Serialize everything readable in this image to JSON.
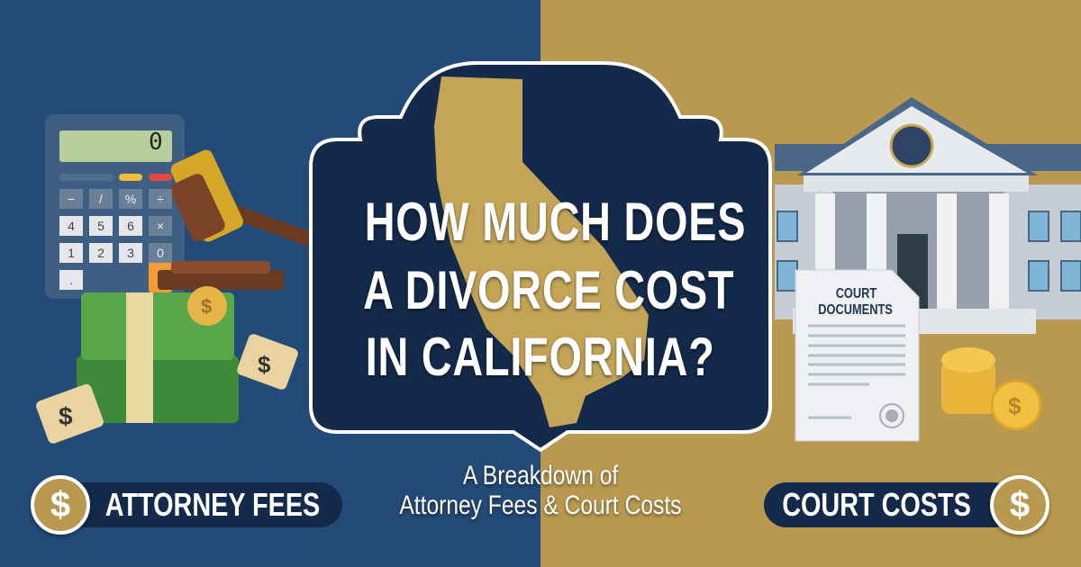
{
  "headline": {
    "line1": "HOW MUCH DOES",
    "line2": "A DIVORCE COST",
    "line3": "IN CALIFORNIA?"
  },
  "subtitle": {
    "line1": "A Breakdown of",
    "line2": "Attorney Fees & Court Costs"
  },
  "left_badge": {
    "label": "ATTORNEY FEES",
    "icon": "dollar-icon",
    "symbol": "$"
  },
  "right_badge": {
    "label": "COURT COSTS",
    "icon": "dollar-icon",
    "symbol": "$"
  },
  "calculator": {
    "display": "0",
    "keys": [
      "−",
      "/",
      "%",
      "÷",
      "4",
      "5",
      "6",
      "×",
      "1",
      "2",
      "3",
      "=",
      "0",
      "."
    ]
  },
  "document": {
    "line1": "COURT",
    "line2": "DOCUMENTS"
  },
  "price_tag_symbol": "$",
  "colors": {
    "left_bg": "#244a77",
    "right_bg": "#b8994f",
    "bubble": "#142a4a",
    "gold": "#c9a955"
  }
}
